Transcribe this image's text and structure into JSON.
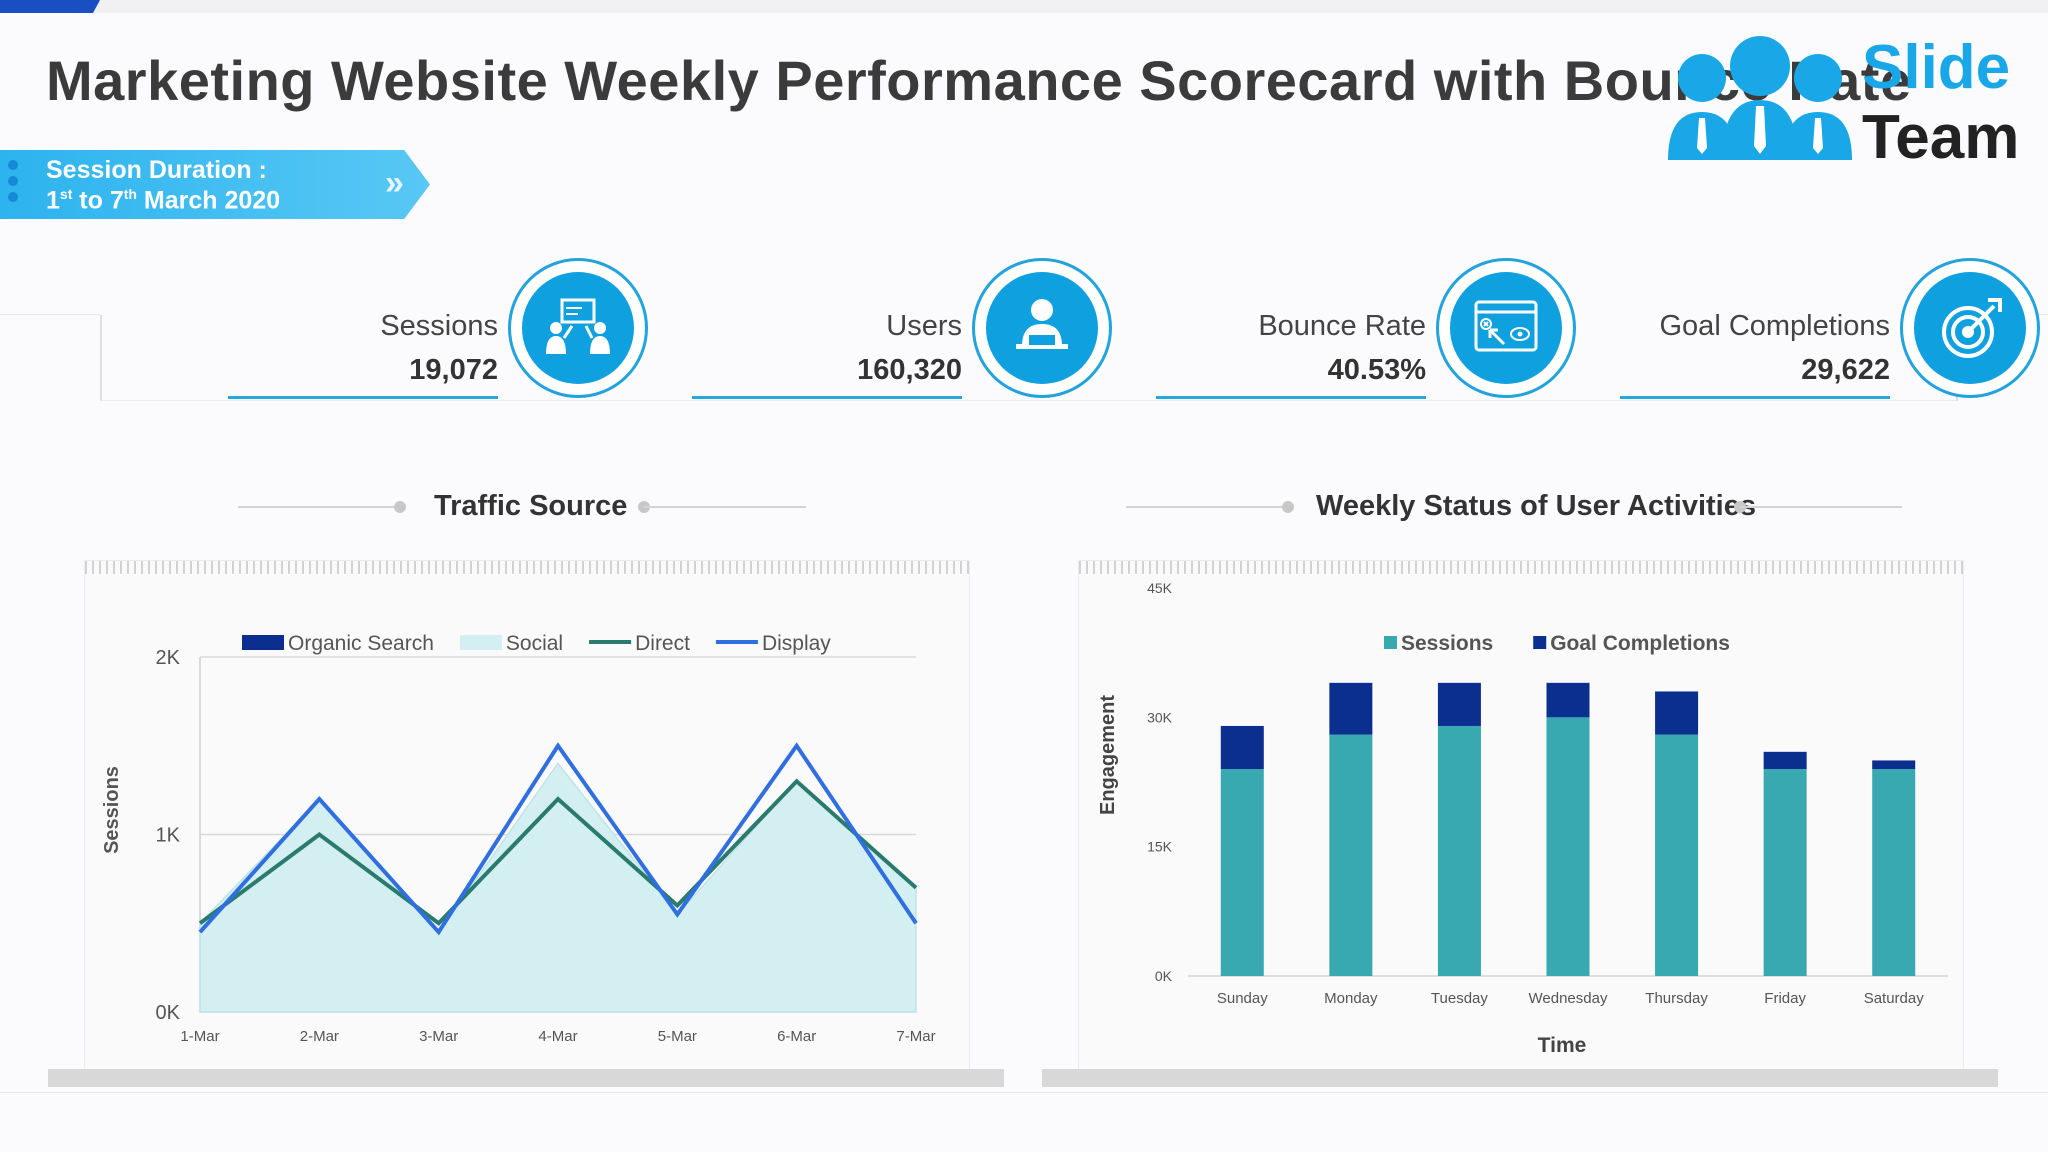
{
  "header": {
    "title": "Marketing Website Weekly Performance Scorecard with Bounce Rate",
    "logo_line1": "Slide",
    "logo_line2": "Team"
  },
  "session": {
    "label": "Session Duration :",
    "date_from_day": "1",
    "date_from_suffix": "st",
    "date_to_prefix": " to 7",
    "date_to_suffix": "th",
    "date_month": " March 2020"
  },
  "kpis": [
    {
      "label": "Sessions",
      "value": "19,072",
      "icon": "presentation-people-icon"
    },
    {
      "label": "Users",
      "value": "160,320",
      "icon": "user-laptop-icon"
    },
    {
      "label": "Bounce Rate",
      "value": "40.53%",
      "icon": "browser-cursor-icon"
    },
    {
      "label": "Goal Completions",
      "value": "29,622",
      "icon": "target-arrow-icon"
    }
  ],
  "colors": {
    "accent": "#0fa0df",
    "organic": "#0b2f8f",
    "social": "#d4eff1",
    "direct": "#2a7a6e",
    "display": "#2f6fe0",
    "sessions_bar": "#38a9b1",
    "goal_bar": "#0b2f8f"
  },
  "chart_data": [
    {
      "type": "area",
      "title": "Traffic Source",
      "ylabel": "Sessions",
      "xlabel": "",
      "categories": [
        "1-Mar",
        "2-Mar",
        "3-Mar",
        "4-Mar",
        "5-Mar",
        "6-Mar",
        "7-Mar"
      ],
      "yticks": [
        "0K",
        "1K",
        "2K"
      ],
      "ylim": [
        0,
        2000
      ],
      "grid": true,
      "legend": "top",
      "series": [
        {
          "name": "Organic Search",
          "kind": "area",
          "values": [
            0,
            0,
            0,
            0,
            0,
            0,
            0
          ]
        },
        {
          "name": "Social",
          "kind": "area",
          "values": [
            500,
            1200,
            450,
            1400,
            550,
            1300,
            700
          ]
        },
        {
          "name": "Direct",
          "kind": "line",
          "values": [
            500,
            1000,
            500,
            1200,
            600,
            1300,
            700
          ]
        },
        {
          "name": "Display",
          "kind": "line",
          "values": [
            450,
            1200,
            450,
            1500,
            550,
            1500,
            500
          ]
        }
      ]
    },
    {
      "type": "bar",
      "stacked": true,
      "title": "Weekly Status of User Activities",
      "xlabel": "Time",
      "ylabel": "Engagement",
      "categories": [
        "Sunday",
        "Monday",
        "Tuesday",
        "Wednesday",
        "Thursday",
        "Friday",
        "Saturday"
      ],
      "yticks": [
        "0K",
        "15K",
        "30K",
        "45K"
      ],
      "ylim": [
        0,
        45000
      ],
      "legend": "top",
      "series": [
        {
          "name": "Sessions",
          "values": [
            24000,
            28000,
            29000,
            30000,
            28000,
            24000,
            24000
          ]
        },
        {
          "name": "Goal Completions",
          "values": [
            5000,
            6000,
            5000,
            4000,
            5000,
            2000,
            1000
          ]
        }
      ]
    }
  ]
}
